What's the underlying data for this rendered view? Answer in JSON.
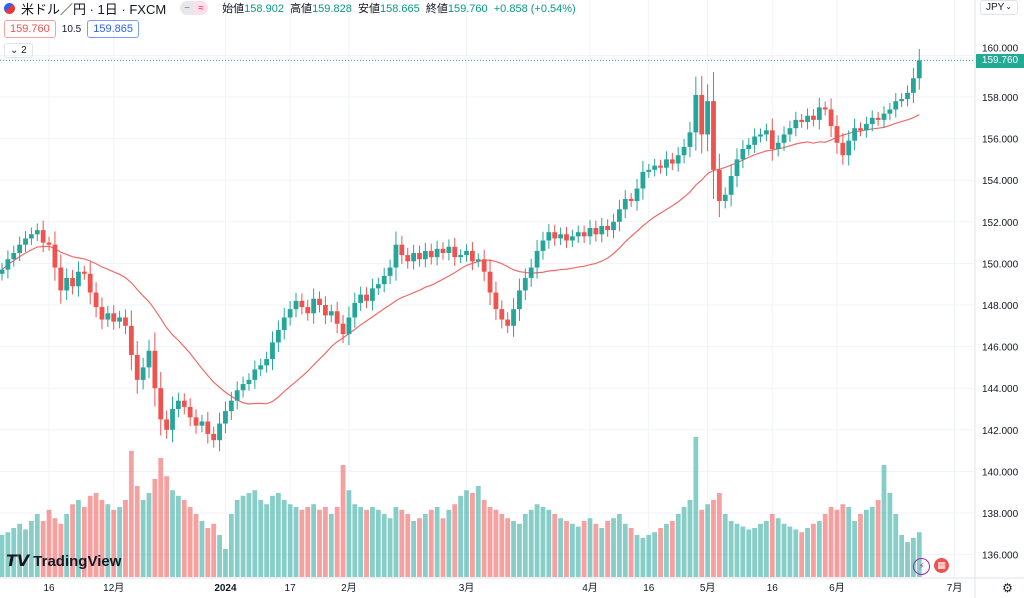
{
  "header": {
    "symbol": "米ドル／円 · 1日 · FXCM",
    "open_label": "始値",
    "open": "158.902",
    "high_label": "高値",
    "high": "159.828",
    "low_label": "安値",
    "low": "158.665",
    "close_label": "終値",
    "close": "159.760",
    "change": "+0.858 (+0.54%)"
  },
  "quotes": {
    "bid": "159.760",
    "spread": "10.5",
    "ask": "159.865"
  },
  "studies_toggle": "2",
  "currency": "JPY",
  "last_price": "159.760",
  "logo": "TradingView",
  "colors": {
    "up": "#26a69a",
    "down": "#ef5350",
    "ma": "#f06a6a",
    "last": "#22ab94"
  },
  "chart_data": {
    "type": "candlestick",
    "symbol": "USDJPY",
    "interval": "1D",
    "ylim": [
      135,
      161
    ],
    "y_ticks": [
      "136.000",
      "138.000",
      "140.000",
      "142.000",
      "144.000",
      "146.000",
      "148.000",
      "150.000",
      "152.000",
      "154.000",
      "156.000",
      "158.000",
      "160.000"
    ],
    "x_ticks": [
      {
        "i": 8,
        "label": "16"
      },
      {
        "i": 19,
        "label": "12月"
      },
      {
        "i": 38,
        "label": "2024"
      },
      {
        "i": 49,
        "label": "17"
      },
      {
        "i": 59,
        "label": "2月"
      },
      {
        "i": 79,
        "label": "3月"
      },
      {
        "i": 100,
        "label": "4月"
      },
      {
        "i": 110,
        "label": "16"
      },
      {
        "i": 120,
        "label": "5月"
      },
      {
        "i": 131,
        "label": "16"
      },
      {
        "i": 142,
        "label": "6月"
      },
      {
        "i": 162,
        "label": "7月"
      }
    ],
    "ma_period": 20,
    "closes": [
      149.7,
      150.2,
      150.5,
      150.9,
      151.2,
      151.4,
      151.6,
      151.0,
      150.9,
      149.8,
      148.7,
      149.3,
      148.9,
      149.6,
      149.5,
      148.6,
      147.9,
      147.3,
      147.6,
      147.2,
      147.4,
      147.0,
      145.6,
      144.4,
      145.0,
      145.8,
      144.0,
      142.5,
      142.0,
      143.0,
      143.4,
      143.1,
      142.6,
      142.2,
      142.4,
      141.8,
      141.5,
      142.3,
      142.9,
      143.4,
      143.9,
      144.2,
      144.4,
      144.9,
      145.1,
      145.4,
      146.2,
      146.8,
      147.4,
      147.8,
      148.2,
      147.9,
      147.6,
      148.3,
      148.0,
      147.5,
      147.7,
      147.1,
      146.6,
      147.4,
      148.1,
      148.5,
      148.2,
      148.8,
      149.0,
      149.4,
      149.8,
      150.9,
      150.4,
      150.1,
      150.5,
      150.2,
      150.6,
      150.3,
      150.7,
      150.5,
      150.8,
      150.3,
      150.4,
      150.6,
      150.1,
      150.2,
      149.6,
      148.6,
      147.8,
      147.3,
      147.0,
      147.8,
      148.7,
      149.3,
      149.8,
      150.6,
      151.1,
      151.5,
      151.2,
      151.4,
      151.1,
      151.3,
      151.5,
      151.3,
      151.7,
      151.4,
      151.8,
      151.6,
      152.0,
      152.6,
      153.1,
      153.0,
      153.6,
      154.4,
      154.5,
      154.7,
      154.6,
      155.0,
      154.8,
      155.2,
      155.6,
      156.3,
      158.1,
      156.2,
      157.8,
      154.5,
      153.0,
      153.3,
      154.2,
      155.0,
      155.5,
      155.7,
      156.1,
      156.2,
      156.4,
      155.5,
      155.8,
      156.2,
      156.5,
      156.9,
      156.8,
      157.1,
      156.9,
      157.5,
      157.4,
      156.6,
      155.8,
      155.2,
      155.9,
      156.5,
      156.4,
      156.7,
      157.0,
      156.9,
      157.2,
      157.4,
      157.8,
      157.9,
      158.2,
      158.9,
      159.76
    ],
    "volumes": [
      30,
      32,
      35,
      38,
      34,
      40,
      45,
      40,
      48,
      42,
      38,
      45,
      52,
      55,
      50,
      58,
      60,
      55,
      52,
      48,
      50,
      55,
      90,
      65,
      55,
      60,
      70,
      85,
      72,
      62,
      58,
      55,
      50,
      45,
      40,
      35,
      38,
      30,
      20,
      45,
      55,
      58,
      60,
      62,
      55,
      52,
      58,
      60,
      55,
      52,
      50,
      48,
      50,
      52,
      48,
      50,
      45,
      50,
      80,
      62,
      52,
      50,
      48,
      50,
      48,
      45,
      42,
      50,
      48,
      45,
      40,
      42,
      45,
      48,
      50,
      42,
      48,
      52,
      58,
      62,
      60,
      65,
      55,
      50,
      48,
      45,
      42,
      40,
      38,
      45,
      48,
      52,
      50,
      48,
      45,
      42,
      40,
      38,
      36,
      40,
      42,
      38,
      35,
      40,
      42,
      45,
      38,
      35,
      30,
      28,
      30,
      32,
      35,
      38,
      40,
      45,
      50,
      55,
      100,
      48,
      52,
      55,
      60,
      45,
      40,
      38,
      36,
      34,
      35,
      38,
      40,
      45,
      42,
      38,
      36,
      34,
      32,
      35,
      38,
      40,
      45,
      50,
      48,
      52,
      50,
      40,
      45,
      48,
      50,
      55,
      80,
      60,
      45,
      30,
      25,
      28,
      32
    ]
  }
}
